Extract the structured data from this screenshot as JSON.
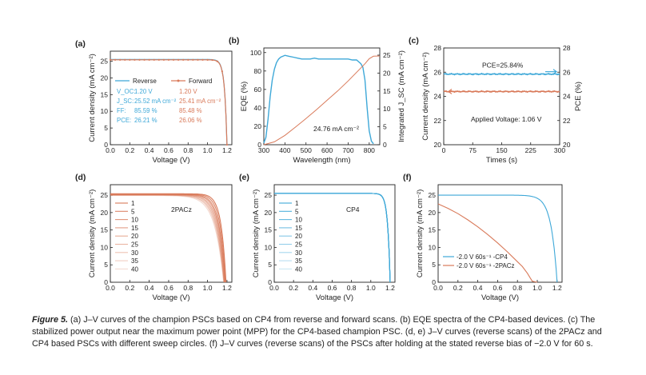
{
  "colors": {
    "reverse": "#3ea8d8",
    "forward": "#d97a5a",
    "axis": "#222222"
  },
  "panels": {
    "a": {
      "label": "(a)",
      "ylabel": "Current density (mA cm⁻²)",
      "xlabel": "Voltage (V)",
      "legend": [
        "Reverse",
        "Forward"
      ],
      "params": [
        {
          "name": "V_OC:",
          "reverse": "1.20 V",
          "forward": "1.20 V"
        },
        {
          "name": "J_SC:",
          "reverse": "25.52 mA cm⁻²",
          "forward": "25.41 mA cm⁻²"
        },
        {
          "name": "FF:",
          "reverse": "85.59 %",
          "forward": "85.48 %"
        },
        {
          "name": "PCE:",
          "reverse": "26.21 %",
          "forward": "26.06 %"
        }
      ]
    },
    "b": {
      "label": "(b)",
      "ylabel_left": "EQE (%)",
      "ylabel_right": "Integrated J_SC (mA cm⁻²)",
      "xlabel": "Wavelength (nm)",
      "annotation": "24.76 mA cm⁻²"
    },
    "c": {
      "label": "(c)",
      "ylabel_left": "Current density (mA cm⁻²)",
      "ylabel_right": "PCE (%)",
      "xlabel": "Times (s)",
      "annotation_pce": "PCE=25.84%",
      "annotation_voltage": "Applied Voltage: 1.06 V"
    },
    "d": {
      "label": "(d)",
      "ylabel": "Current density (mA cm⁻²)",
      "xlabel": "Voltage (V)",
      "material": "2PACz",
      "legend": [
        "1",
        "5",
        "10",
        "15",
        "20",
        "25",
        "30",
        "35",
        "40"
      ]
    },
    "e": {
      "label": "(e)",
      "ylabel": "Current density (mA cm⁻²)",
      "xlabel": "Voltage (V)",
      "material": "CP4",
      "legend": [
        "1",
        "5",
        "10",
        "15",
        "20",
        "25",
        "30",
        "35",
        "40"
      ]
    },
    "f": {
      "label": "(f)",
      "ylabel": "Current density (mA cm⁻²)",
      "xlabel": "Voltage (V)",
      "legend": [
        "-2.0 V 60s⁻¹ -CP4",
        "-2.0 V 60s⁻¹ -2PACz"
      ]
    }
  },
  "caption": {
    "figure_label": "Figure 5.",
    "text": " (a) J–V curves of the champion PSCs based on CP4 from reverse and forward scans. (b) EQE spectra of the CP4-based devices. (c) The stabilized power output near the maximum power point (MPP) for the CP4-based champion PSC. (d, e) J–V curves (reverse scans) of the 2PACz and CP4 based PSCs with different sweep circles. (f) J–V curves (reverse scans) of the PSCs after holding at the stated reverse bias of −2.0 V for 60 s."
  },
  "chart_data": [
    {
      "panel": "a",
      "type": "line",
      "title": "",
      "xlabel": "Voltage (V)",
      "ylabel": "Current density (mA cm-2)",
      "xlim": [
        0,
        1.25
      ],
      "ylim": [
        0,
        28
      ],
      "xticks": [
        0.0,
        0.2,
        0.4,
        0.6,
        0.8,
        1.0,
        1.2
      ],
      "yticks": [
        0,
        5,
        10,
        15,
        20,
        25
      ],
      "series": [
        {
          "name": "Reverse",
          "type": "jv",
          "jsc": 25.52,
          "voc": 1.2,
          "k": 0.025
        },
        {
          "name": "Forward",
          "type": "jv",
          "jsc": 25.41,
          "voc": 1.2,
          "k": 0.025
        }
      ]
    },
    {
      "panel": "b",
      "type": "line",
      "title": "",
      "xlabel": "Wavelength (nm)",
      "ylabel": "EQE (%)",
      "ylabel_right": "Integrated Jsc (mA cm-2)",
      "xlim": [
        300,
        850
      ],
      "ylim": [
        0,
        105
      ],
      "ylim_right": [
        0,
        27
      ],
      "xticks": [
        300,
        400,
        500,
        600,
        700,
        800
      ],
      "yticks": [
        0,
        20,
        40,
        60,
        80,
        100
      ],
      "yticks_right": [
        0,
        5,
        10,
        15,
        20,
        25
      ],
      "series": [
        {
          "name": "EQE",
          "x": [
            300,
            310,
            320,
            330,
            340,
            350,
            360,
            370,
            380,
            390,
            400,
            420,
            440,
            460,
            480,
            500,
            520,
            540,
            560,
            580,
            600,
            620,
            640,
            660,
            680,
            700,
            720,
            740,
            760,
            770,
            780,
            790,
            800,
            810,
            820
          ],
          "y": [
            2,
            8,
            28,
            52,
            70,
            82,
            89,
            93,
            95,
            96,
            97,
            96,
            95,
            94,
            93,
            93,
            93,
            94,
            93,
            93,
            93,
            93,
            93,
            93,
            93,
            93,
            92,
            92,
            88,
            84,
            70,
            40,
            15,
            4,
            1
          ]
        },
        {
          "name": "Integrated Jsc",
          "axis": "right",
          "x": [
            300,
            350,
            400,
            450,
            500,
            550,
            600,
            650,
            700,
            750,
            780,
            800,
            820,
            850
          ],
          "y": [
            0,
            0.8,
            2.6,
            4.9,
            7.3,
            9.8,
            12.4,
            15.0,
            17.8,
            20.8,
            22.6,
            24.0,
            24.7,
            24.76
          ]
        }
      ]
    },
    {
      "panel": "c",
      "type": "line",
      "title": "",
      "xlabel": "Times (s)",
      "ylabel": "Current density (mA cm-2)",
      "ylabel_right": "PCE (%)",
      "xlim": [
        0,
        300
      ],
      "ylim": [
        20,
        28
      ],
      "ylim_right": [
        20,
        28
      ],
      "xticks": [
        0,
        75,
        150,
        225,
        300
      ],
      "yticks": [
        20,
        22,
        24,
        26,
        28
      ],
      "yticks_right": [
        20,
        22,
        24,
        26,
        28
      ],
      "series": [
        {
          "name": "PCE",
          "x": [
            0,
            300
          ],
          "y": [
            25.84,
            25.84
          ]
        },
        {
          "name": "Current density",
          "x": [
            0,
            300
          ],
          "y": [
            24.4,
            24.4
          ]
        }
      ]
    },
    {
      "panel": "d",
      "type": "line",
      "title": "",
      "xlabel": "Voltage (V)",
      "ylabel": "Current density (mA cm-2)",
      "xlim": [
        0,
        1.25
      ],
      "ylim": [
        0,
        28
      ],
      "xticks": [
        0.0,
        0.2,
        0.4,
        0.6,
        0.8,
        1.0,
        1.2
      ],
      "yticks": [
        0,
        5,
        10,
        15,
        20,
        25
      ],
      "series": [
        {
          "name": "1",
          "type": "jv",
          "jsc": 25.4,
          "voc": 1.19,
          "k": 0.05
        },
        {
          "name": "5",
          "type": "jv",
          "jsc": 25.3,
          "voc": 1.185,
          "k": 0.055
        },
        {
          "name": "10",
          "type": "jv",
          "jsc": 25.2,
          "voc": 1.18,
          "k": 0.06
        },
        {
          "name": "15",
          "type": "jv",
          "jsc": 25.2,
          "voc": 1.178,
          "k": 0.065
        },
        {
          "name": "20",
          "type": "jv",
          "jsc": 25.1,
          "voc": 1.175,
          "k": 0.07
        },
        {
          "name": "25",
          "type": "jv",
          "jsc": 25.1,
          "voc": 1.172,
          "k": 0.075
        },
        {
          "name": "30",
          "type": "jv",
          "jsc": 25.0,
          "voc": 1.17,
          "k": 0.08
        },
        {
          "name": "35",
          "type": "jv",
          "jsc": 25.0,
          "voc": 1.168,
          "k": 0.085
        },
        {
          "name": "40",
          "type": "jv",
          "jsc": 24.9,
          "voc": 1.165,
          "k": 0.09
        }
      ]
    },
    {
      "panel": "e",
      "type": "line",
      "title": "",
      "xlabel": "Voltage (V)",
      "ylabel": "Current density (mA cm-2)",
      "xlim": [
        0,
        1.25
      ],
      "ylim": [
        0,
        28
      ],
      "xticks": [
        0.0,
        0.2,
        0.4,
        0.6,
        0.8,
        1.0,
        1.2
      ],
      "yticks": [
        0,
        5,
        10,
        15,
        20,
        25
      ],
      "series": [
        {
          "name": "1",
          "type": "jv",
          "jsc": 25.5,
          "voc": 1.2,
          "k": 0.025
        },
        {
          "name": "5",
          "type": "jv",
          "jsc": 25.5,
          "voc": 1.2,
          "k": 0.025
        },
        {
          "name": "10",
          "type": "jv",
          "jsc": 25.5,
          "voc": 1.2,
          "k": 0.025
        },
        {
          "name": "15",
          "type": "jv",
          "jsc": 25.5,
          "voc": 1.2,
          "k": 0.025
        },
        {
          "name": "20",
          "type": "jv",
          "jsc": 25.5,
          "voc": 1.2,
          "k": 0.025
        },
        {
          "name": "25",
          "type": "jv",
          "jsc": 25.5,
          "voc": 1.2,
          "k": 0.025
        },
        {
          "name": "30",
          "type": "jv",
          "jsc": 25.5,
          "voc": 1.2,
          "k": 0.025
        },
        {
          "name": "35",
          "type": "jv",
          "jsc": 25.5,
          "voc": 1.2,
          "k": 0.025
        },
        {
          "name": "40",
          "type": "jv",
          "jsc": 25.5,
          "voc": 1.2,
          "k": 0.025
        }
      ]
    },
    {
      "panel": "f",
      "type": "line",
      "title": "",
      "xlabel": "Voltage (V)",
      "ylabel": "Current density (mA cm-2)",
      "xlim": [
        0,
        1.25
      ],
      "ylim": [
        0,
        28
      ],
      "xticks": [
        0.0,
        0.2,
        0.4,
        0.6,
        0.8,
        1.0,
        1.2
      ],
      "yticks": [
        0,
        5,
        10,
        15,
        20,
        25
      ],
      "series": [
        {
          "name": "-2.0 V 60s-1 -CP4",
          "type": "jv",
          "jsc": 25.0,
          "voc": 1.2,
          "k": 0.06
        },
        {
          "name": "-2.0 V 60s-1 -2PACz",
          "x": [
            0,
            0.1,
            0.2,
            0.3,
            0.4,
            0.5,
            0.6,
            0.7,
            0.8,
            0.85,
            0.9,
            0.93,
            0.95,
            1.0
          ],
          "y": [
            22.5,
            21.2,
            19.7,
            17.9,
            15.9,
            13.7,
            11.3,
            8.7,
            5.9,
            4.5,
            2.6,
            1.2,
            0.3,
            0.0
          ]
        }
      ]
    }
  ]
}
